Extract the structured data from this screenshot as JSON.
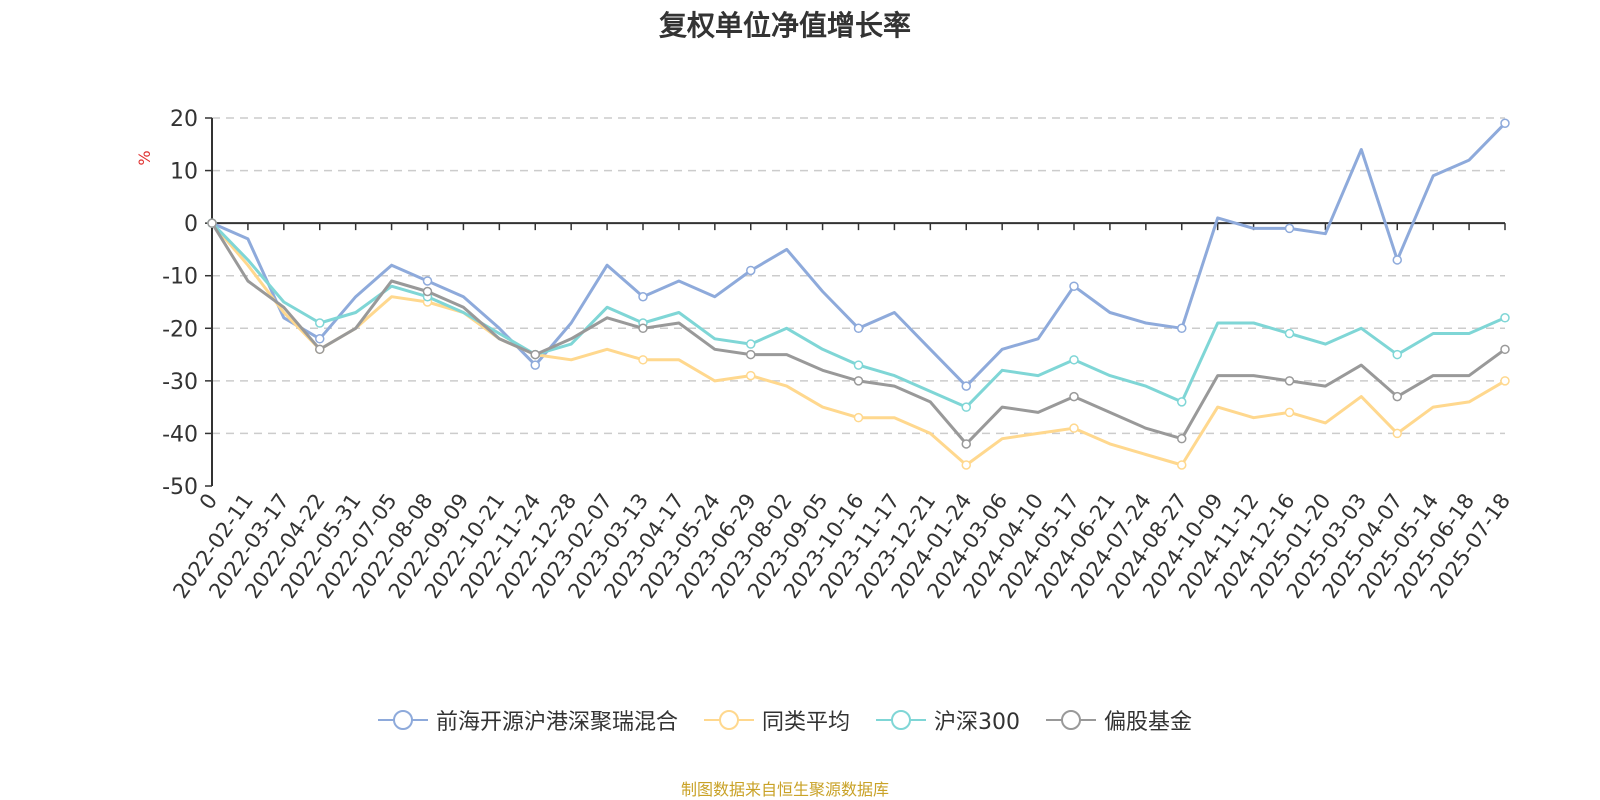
{
  "chart_data": {
    "type": "line",
    "title": "复权单位净值增长率",
    "ylabel": "%",
    "ylim": [
      -50,
      20
    ],
    "yticks": [
      20,
      10,
      0,
      -10,
      -20,
      -30,
      -40,
      -50
    ],
    "grid": true,
    "legend_position": "bottom-center",
    "x": [
      "0",
      "2022-02-11",
      "2022-03-17",
      "2022-04-22",
      "2022-05-31",
      "2022-07-05",
      "2022-08-08",
      "2022-09-09",
      "2022-10-21",
      "2022-11-24",
      "2022-12-28",
      "2023-02-07",
      "2023-03-13",
      "2023-04-17",
      "2023-05-24",
      "2023-06-29",
      "2023-08-02",
      "2023-09-05",
      "2023-10-16",
      "2023-11-17",
      "2023-12-21",
      "2024-01-24",
      "2024-03-06",
      "2024-04-10",
      "2024-05-17",
      "2024-06-21",
      "2024-07-24",
      "2024-08-27",
      "2024-10-09",
      "2024-11-12",
      "2024-12-16",
      "2025-01-20",
      "2025-03-03",
      "2025-04-07",
      "2025-05-14",
      "2025-06-18",
      "2025-07-18"
    ],
    "series": [
      {
        "name": "前海开源沪港深聚瑞混合",
        "color": "#8eaadb",
        "values": [
          0,
          -3,
          -18,
          -22,
          -14,
          -8,
          -11,
          -14,
          -20,
          -27,
          -19,
          -8,
          -14,
          -11,
          -14,
          -9,
          -5,
          -13,
          -20,
          -17,
          -24,
          -31,
          -24,
          -22,
          -12,
          -17,
          -19,
          -20,
          1,
          -1,
          -1,
          -2,
          14,
          -7,
          9,
          12,
          19
        ]
      },
      {
        "name": "同类平均",
        "color": "#ffd88e",
        "values": [
          0,
          -8,
          -17,
          -24,
          -20,
          -14,
          -15,
          -17,
          -22,
          -25,
          -26,
          -24,
          -26,
          -26,
          -30,
          -29,
          -31,
          -35,
          -37,
          -37,
          -40,
          -46,
          -41,
          -40,
          -39,
          -42,
          -44,
          -46,
          -35,
          -37,
          -36,
          -38,
          -33,
          -40,
          -35,
          -34,
          -30
        ]
      },
      {
        "name": "沪深300",
        "color": "#7fd6d6",
        "values": [
          0,
          -7,
          -15,
          -19,
          -17,
          -12,
          -14,
          -17,
          -21,
          -25,
          -23,
          -16,
          -19,
          -17,
          -22,
          -23,
          -20,
          -24,
          -27,
          -29,
          -32,
          -35,
          -28,
          -29,
          -26,
          -29,
          -31,
          -34,
          -19,
          -19,
          -21,
          -23,
          -20,
          -25,
          -21,
          -21,
          -18
        ]
      },
      {
        "name": "偏股基金",
        "color": "#999999",
        "values": [
          0,
          -11,
          -16,
          -24,
          -20,
          -11,
          -13,
          -16,
          -22,
          -25,
          -22,
          -18,
          -20,
          -19,
          -24,
          -25,
          -25,
          -28,
          -30,
          -31,
          -34,
          -42,
          -35,
          -36,
          -33,
          -36,
          -39,
          -41,
          -29,
          -29,
          -30,
          -31,
          -27,
          -33,
          -29,
          -29,
          -24
        ]
      }
    ]
  },
  "source_note": "制图数据来自恒生聚源数据库"
}
